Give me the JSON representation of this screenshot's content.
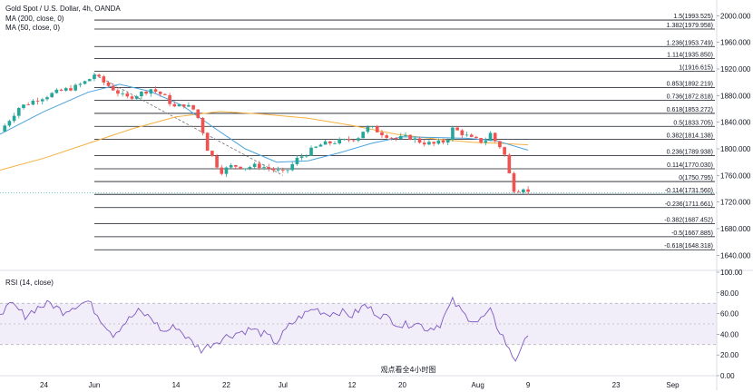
{
  "header": {
    "symbol_title": "Gold Spot / U.S. Dollar, 4h, OANDA",
    "ma200_label": "MA (200, close, 0)",
    "ma50_label": "MA (50, close, 0)",
    "rsi_label": "RSI (14, close)"
  },
  "watermark": "观点看全4小时图",
  "chart_data": [
    {
      "type": "candlestick",
      "title": "Gold Spot / U.S. Dollar, 4h, OANDA",
      "ylim": [
        1620,
        2010
      ],
      "y_ticks": [
        "2000.000",
        "1960.000",
        "1920.000",
        "1880.000",
        "1840.000",
        "1800.000",
        "1760.000",
        "1720.000",
        "1680.000",
        "1640.000"
      ],
      "x_ticks": [
        "24",
        "Jun",
        "14",
        "22",
        "Jul",
        "12",
        "20",
        "Aug",
        "9",
        "23",
        "Sep"
      ],
      "x_tick_days": [
        -7,
        1,
        14,
        22,
        31,
        42,
        50,
        62,
        70,
        84,
        93
      ],
      "x_range_days": [
        -14,
        100
      ],
      "last_price": 1734,
      "grid": false,
      "series": [
        {
          "name": "close",
          "kind": "price",
          "points": [
            [
              -14,
              1826
            ],
            [
              -11,
              1862
            ],
            [
              -8,
              1875
            ],
            [
              -5,
              1885
            ],
            [
              -2,
              1893
            ],
            [
              0,
              1903
            ],
            [
              1,
              1912
            ],
            [
              2,
              1903
            ],
            [
              4,
              1890
            ],
            [
              6,
              1876
            ],
            [
              8,
              1882
            ],
            [
              10,
              1890
            ],
            [
              12,
              1880
            ],
            [
              14,
              1860
            ],
            [
              15,
              1868
            ],
            [
              17,
              1858
            ],
            [
              18,
              1835
            ],
            [
              19,
              1800
            ],
            [
              20,
              1785
            ],
            [
              21,
              1765
            ],
            [
              23,
              1775
            ],
            [
              25,
              1772
            ],
            [
              27,
              1775
            ],
            [
              29,
              1770
            ],
            [
              31,
              1764
            ],
            [
              32,
              1770
            ],
            [
              33,
              1783
            ],
            [
              35,
              1795
            ],
            [
              37,
              1806
            ],
            [
              39,
              1810
            ],
            [
              41,
              1812
            ],
            [
              43,
              1818
            ],
            [
              44,
              1830
            ],
            [
              45,
              1832
            ],
            [
              47,
              1822
            ],
            [
              49,
              1815
            ],
            [
              51,
              1818
            ],
            [
              53,
              1810
            ],
            [
              55,
              1807
            ],
            [
              57,
              1812
            ],
            [
              58,
              1830
            ],
            [
              59,
              1826
            ],
            [
              61,
              1815
            ],
            [
              63,
              1810
            ],
            [
              64,
              1823
            ],
            [
              65,
              1808
            ],
            [
              66,
              1800
            ],
            [
              67,
              1762
            ],
            [
              68,
              1732
            ],
            [
              69,
              1745
            ],
            [
              70,
              1734
            ]
          ]
        },
        {
          "name": "MA (200, close, 0)",
          "kind": "ma",
          "color": "#f5b041",
          "points": [
            [
              -14,
              1768
            ],
            [
              -7,
              1786
            ],
            [
              0,
              1808
            ],
            [
              7,
              1830
            ],
            [
              14,
              1848
            ],
            [
              21,
              1856
            ],
            [
              28,
              1852
            ],
            [
              35,
              1846
            ],
            [
              42,
              1835
            ],
            [
              49,
              1822
            ],
            [
              56,
              1814
            ],
            [
              61,
              1810
            ],
            [
              66,
              1808
            ],
            [
              70,
              1806
            ]
          ]
        },
        {
          "name": "MA (50, close, 0)",
          "kind": "ma",
          "color": "#4aa3df",
          "points": [
            [
              -14,
              1822
            ],
            [
              -7,
              1856
            ],
            [
              0,
              1885
            ],
            [
              5,
              1897
            ],
            [
              10,
              1886
            ],
            [
              15,
              1865
            ],
            [
              20,
              1832
            ],
            [
              25,
              1800
            ],
            [
              30,
              1780
            ],
            [
              35,
              1782
            ],
            [
              40,
              1794
            ],
            [
              45,
              1808
            ],
            [
              50,
              1818
            ],
            [
              55,
              1817
            ],
            [
              60,
              1816
            ],
            [
              65,
              1812
            ],
            [
              70,
              1798
            ]
          ]
        }
      ],
      "fib_levels": [
        {
          "label": "1.5(1993.525)",
          "value": 1993.525
        },
        {
          "label": "1.382(1979.958)",
          "value": 1979.958
        },
        {
          "label": "1.236(1953.749)",
          "value": 1953.749
        },
        {
          "label": "1.114(1935.850)",
          "value": 1935.85
        },
        {
          "label": "1(1916.615)",
          "value": 1916.615
        },
        {
          "label": "0.853(1892.219)",
          "value": 1892.219
        },
        {
          "label": "0.736(1872.818)",
          "value": 1872.818
        },
        {
          "label": "0.618(1853.272)",
          "value": 1853.272
        },
        {
          "label": "0.5(1833.705)",
          "value": 1833.705
        },
        {
          "label": "0.382(1814.138)",
          "value": 1814.138
        },
        {
          "label": "0.236(1789.938)",
          "value": 1789.938
        },
        {
          "label": "0.114(1770.030)",
          "value": 1770.03
        },
        {
          "label": "0(1750.795)",
          "value": 1750.795
        },
        {
          "label": "-0.114(1731.560)",
          "value": 1731.56
        },
        {
          "label": "-0.236(1711.661)",
          "value": 1711.661
        },
        {
          "label": "-0.382(1687.452)",
          "value": 1687.452
        },
        {
          "label": "-0.5(1667.885)",
          "value": 1667.885
        },
        {
          "label": "-0.618(1648.318)",
          "value": 1648.318
        }
      ],
      "trendline": {
        "from": [
          1,
          1912
        ],
        "to": [
          31,
          1760
        ]
      }
    },
    {
      "type": "line",
      "title": "RSI (14, close)",
      "ylim": [
        0,
        100
      ],
      "y_ticks": [
        "100.00",
        "80.00",
        "60.00",
        "40.00",
        "20.00",
        "0.00"
      ],
      "band": [
        30,
        70
      ],
      "midline": 50,
      "series": [
        {
          "name": "RSI (14, close)",
          "color": "#7e57c2",
          "points": [
            [
              -14,
              62
            ],
            [
              -12,
              68
            ],
            [
              -10,
              58
            ],
            [
              -8,
              66
            ],
            [
              -6,
              70
            ],
            [
              -4,
              62
            ],
            [
              -2,
              68
            ],
            [
              0,
              72
            ],
            [
              2,
              55
            ],
            [
              4,
              40
            ],
            [
              6,
              52
            ],
            [
              8,
              62
            ],
            [
              10,
              56
            ],
            [
              12,
              42
            ],
            [
              14,
              48
            ],
            [
              16,
              35
            ],
            [
              18,
              25
            ],
            [
              20,
              32
            ],
            [
              22,
              38
            ],
            [
              24,
              42
            ],
            [
              26,
              45
            ],
            [
              28,
              40
            ],
            [
              30,
              32
            ],
            [
              32,
              48
            ],
            [
              34,
              58
            ],
            [
              36,
              65
            ],
            [
              38,
              60
            ],
            [
              40,
              62
            ],
            [
              42,
              58
            ],
            [
              44,
              68
            ],
            [
              46,
              60
            ],
            [
              48,
              55
            ],
            [
              50,
              48
            ],
            [
              52,
              52
            ],
            [
              54,
              45
            ],
            [
              56,
              50
            ],
            [
              58,
              72
            ],
            [
              60,
              58
            ],
            [
              62,
              52
            ],
            [
              64,
              62
            ],
            [
              65,
              48
            ],
            [
              66,
              38
            ],
            [
              67,
              24
            ],
            [
              68,
              15
            ],
            [
              69,
              30
            ],
            [
              70,
              35
            ]
          ]
        }
      ]
    }
  ]
}
